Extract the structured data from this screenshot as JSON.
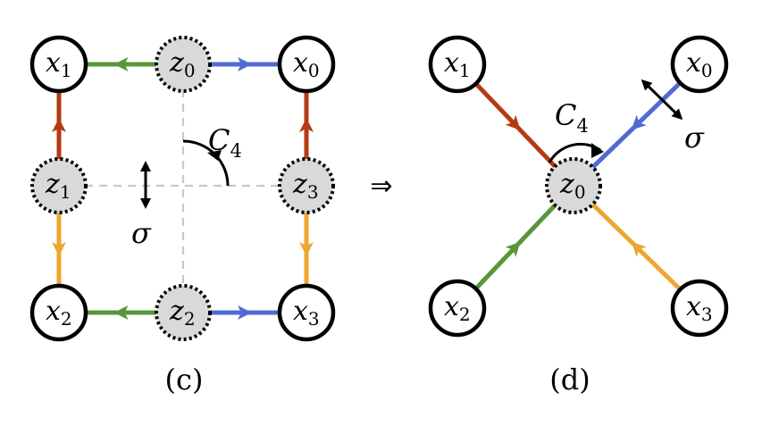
{
  "colors": {
    "red": "#b63a14",
    "green": "#58963a",
    "blue": "#4f6bd2",
    "orange": "#eda632",
    "latent_fill": "#d9d9d9",
    "node_stroke": "#000000",
    "dashed_axis": "#c8c8c8"
  },
  "panel_c": {
    "caption": "(c)",
    "nodes": [
      {
        "id": "x1",
        "sym": "x",
        "sub": "1",
        "kind": "observed"
      },
      {
        "id": "z0",
        "sym": "z",
        "sub": "0",
        "kind": "latent"
      },
      {
        "id": "x0",
        "sym": "x",
        "sub": "0",
        "kind": "observed"
      },
      {
        "id": "z1",
        "sym": "z",
        "sub": "1",
        "kind": "latent"
      },
      {
        "id": "z3",
        "sym": "z",
        "sub": "3",
        "kind": "latent"
      },
      {
        "id": "x2",
        "sym": "x",
        "sub": "2",
        "kind": "observed"
      },
      {
        "id": "z2",
        "sym": "z",
        "sub": "2",
        "kind": "latent"
      },
      {
        "id": "x3",
        "sym": "x",
        "sub": "3",
        "kind": "observed"
      }
    ],
    "edges": [
      {
        "from": "z0",
        "to": "x1",
        "color": "green"
      },
      {
        "from": "z0",
        "to": "x0",
        "color": "blue"
      },
      {
        "from": "z1",
        "to": "x1",
        "color": "red"
      },
      {
        "from": "z1",
        "to": "x2",
        "color": "orange"
      },
      {
        "from": "z3",
        "to": "x0",
        "color": "red"
      },
      {
        "from": "z3",
        "to": "x3",
        "color": "orange"
      },
      {
        "from": "z2",
        "to": "x2",
        "color": "green"
      },
      {
        "from": "z2",
        "to": "x3",
        "color": "blue"
      }
    ],
    "rotation_label": {
      "sym": "C",
      "sub": "4"
    },
    "reflection_label": "σ"
  },
  "implies": "⇒",
  "panel_d": {
    "caption": "(d)",
    "nodes": [
      {
        "id": "x1",
        "sym": "x",
        "sub": "1",
        "kind": "observed"
      },
      {
        "id": "x0",
        "sym": "x",
        "sub": "0",
        "kind": "observed"
      },
      {
        "id": "z0",
        "sym": "z",
        "sub": "0",
        "kind": "latent"
      },
      {
        "id": "x2",
        "sym": "x",
        "sub": "2",
        "kind": "observed"
      },
      {
        "id": "x3",
        "sym": "x",
        "sub": "3",
        "kind": "observed"
      }
    ],
    "edges": [
      {
        "from": "x1",
        "to": "z0",
        "color": "red"
      },
      {
        "from": "x0",
        "to": "z0",
        "color": "blue"
      },
      {
        "from": "x2",
        "to": "z0",
        "color": "green"
      },
      {
        "from": "x3",
        "to": "z0",
        "color": "orange"
      }
    ],
    "rotation_label": {
      "sym": "C",
      "sub": "4"
    },
    "reflection_label": "σ"
  }
}
